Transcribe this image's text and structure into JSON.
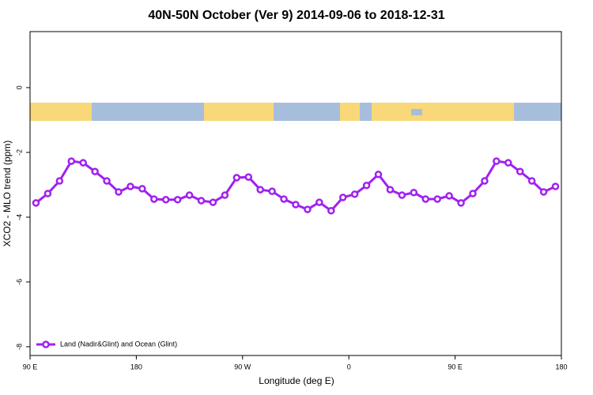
{
  "chart_data": {
    "type": "line",
    "title": "40N-50N October (Ver 9)   2014-09-06 to 2018-12-31",
    "x_label": "Longitude (deg E)",
    "y_label": "XCO2 - MLO trend (ppm)",
    "x": [
      95,
      105,
      115,
      125,
      135,
      145,
      155,
      165,
      175,
      185,
      195,
      205,
      215,
      225,
      235,
      245,
      255,
      265,
      275,
      285,
      295,
      305,
      315,
      325,
      335,
      345,
      355,
      365,
      375,
      385,
      395,
      405,
      415,
      425,
      435,
      445,
      455,
      465,
      475,
      485,
      495,
      505,
      515,
      525,
      535
    ],
    "series": [
      {
        "name": "Land (Nadir&Glint) and Ocean (Glint)",
        "color": "#a020f0",
        "values": [
          -3.56,
          -3.27,
          -2.88,
          -2.27,
          -2.32,
          -2.59,
          -2.88,
          -3.22,
          -3.05,
          -3.12,
          -3.44,
          -3.46,
          -3.46,
          -3.32,
          -3.49,
          -3.54,
          -3.32,
          -2.78,
          -2.76,
          -3.15,
          -3.2,
          -3.44,
          -3.61,
          -3.76,
          -3.54,
          -3.8,
          -3.39,
          -3.29,
          -3.02,
          -2.68,
          -3.15,
          -3.32,
          -3.24,
          -3.44,
          -3.44,
          -3.34,
          -3.56,
          -3.27,
          -2.88,
          -2.27,
          -2.32,
          -2.59,
          -2.88,
          -3.22,
          -3.05
        ]
      }
    ],
    "xlim": [
      90,
      540
    ],
    "xticks": [
      {
        "value": 90,
        "label": "90 E"
      },
      180,
      {
        "value": 270,
        "label": "90 W"
      },
      {
        "value": 360,
        "label": "0"
      },
      {
        "value": 450,
        "label": "90 E"
      },
      {
        "value": 540,
        "label": "180"
      }
    ],
    "ylim": [
      -8.27,
      1.73
    ],
    "yticks": [
      0,
      -2,
      -4,
      -6,
      -8
    ],
    "legend": "bottom-left"
  }
}
